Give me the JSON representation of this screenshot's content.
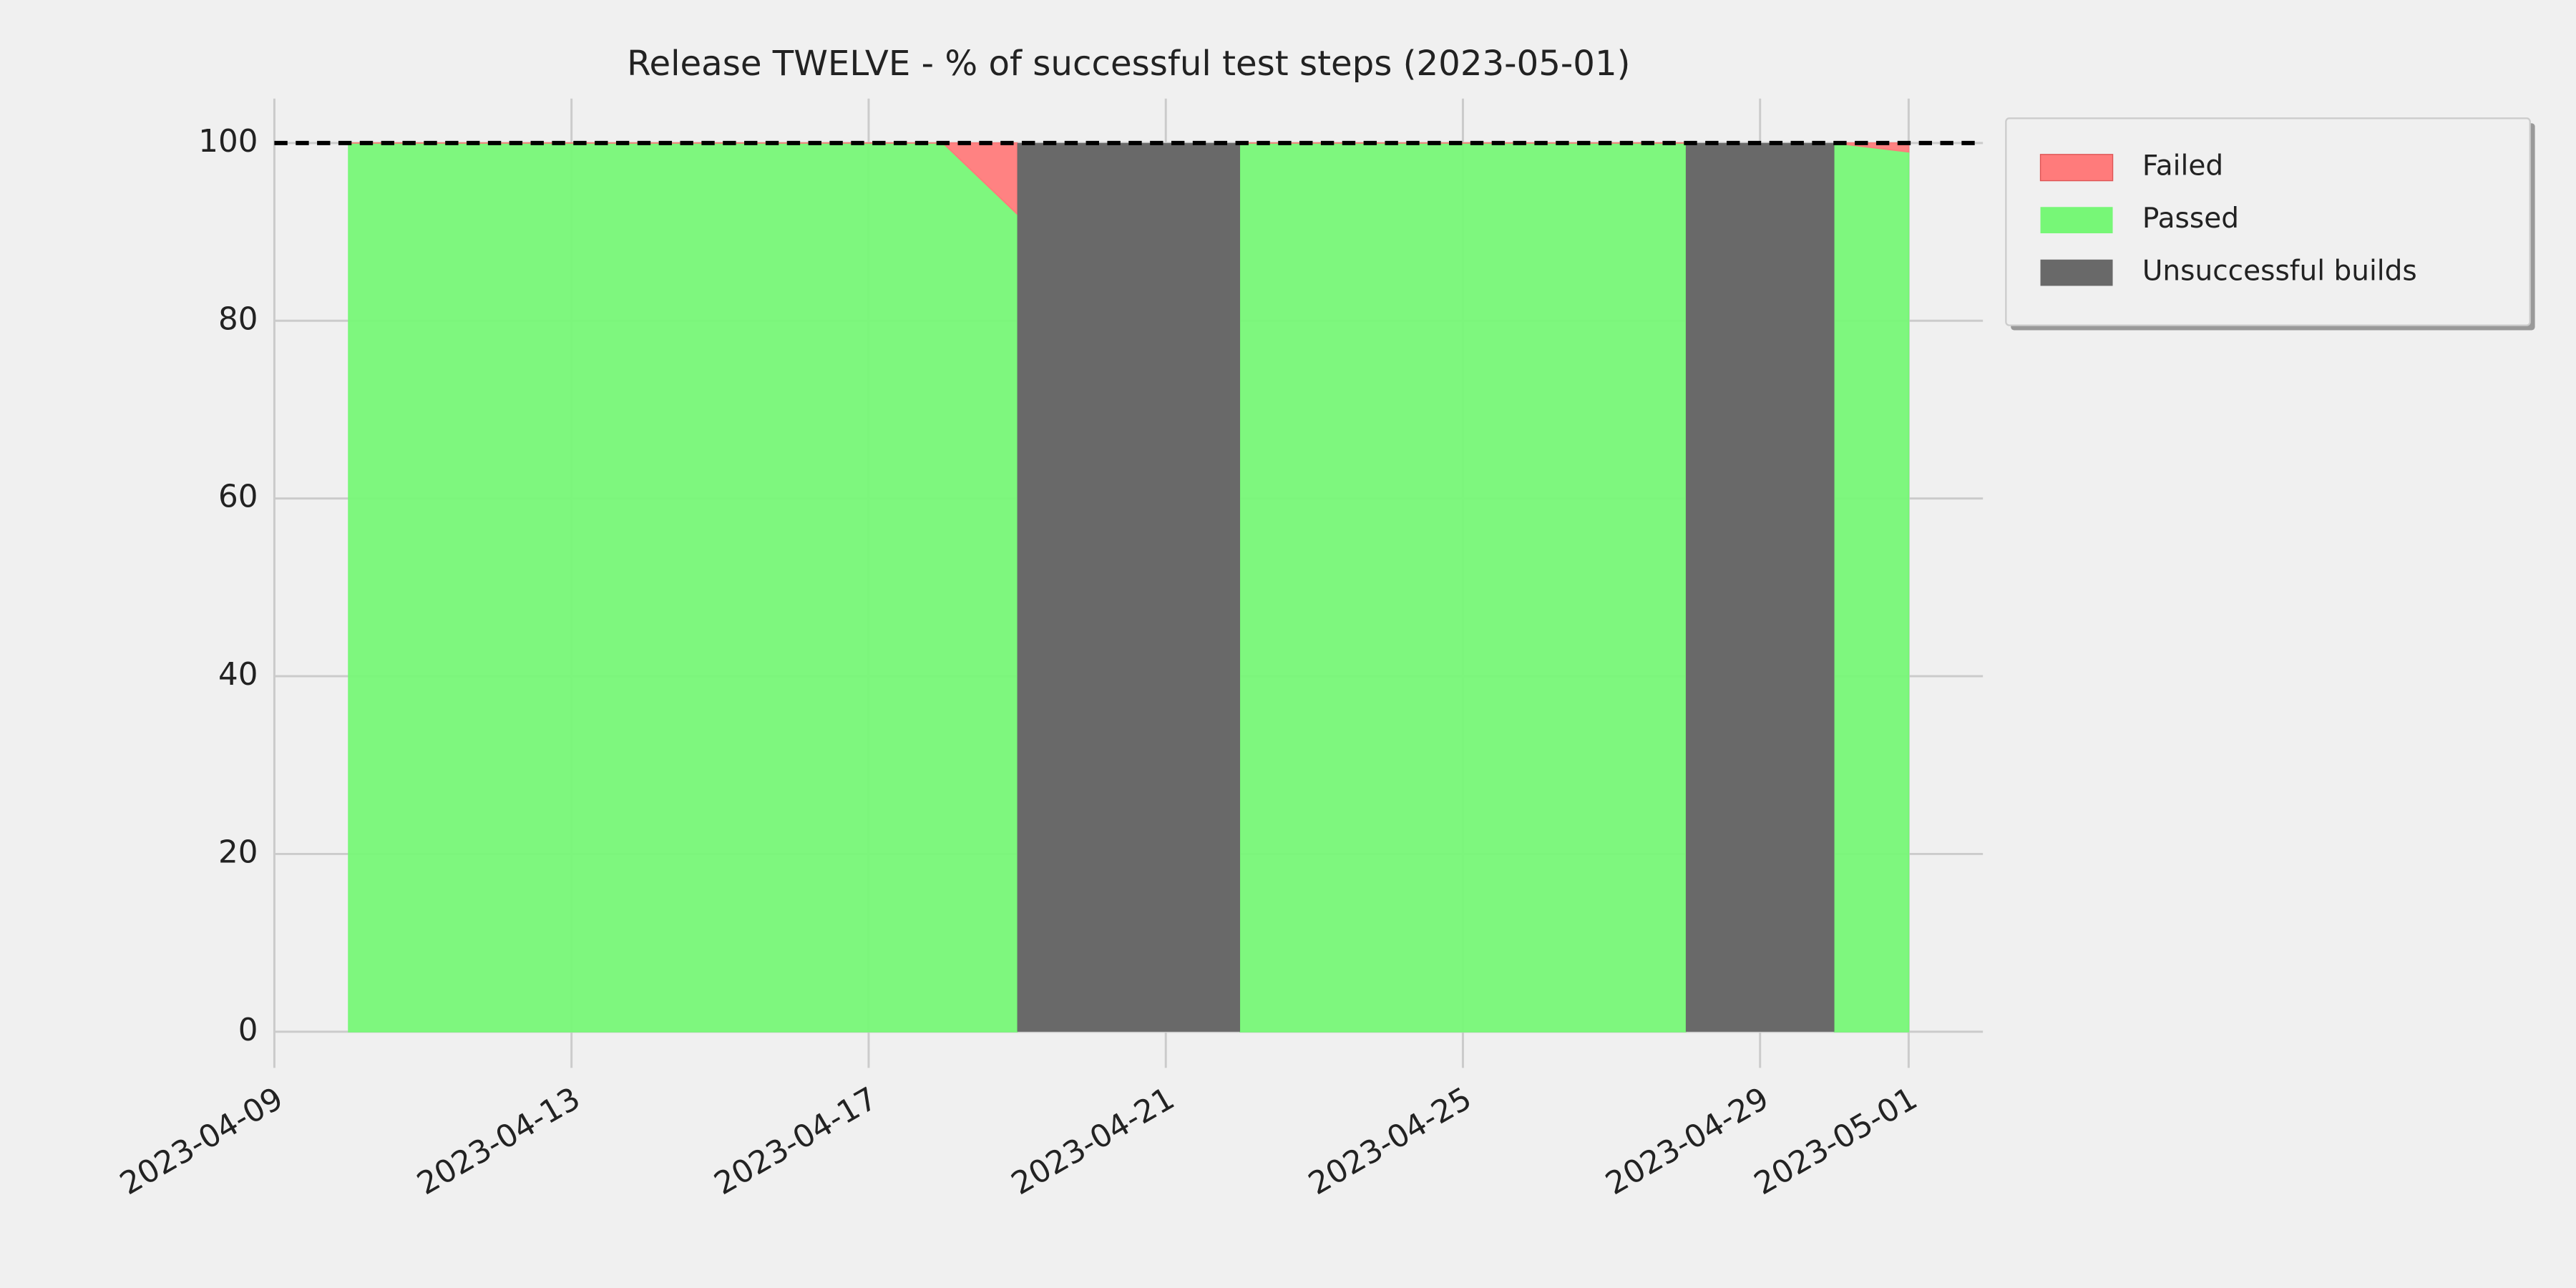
{
  "chart_data": {
    "type": "area",
    "title": "Release TWELVE - % of successful test steps (2023-05-01)",
    "x": [
      "2023-04-10",
      "2023-04-11",
      "2023-04-12",
      "2023-04-13",
      "2023-04-14",
      "2023-04-15",
      "2023-04-16",
      "2023-04-17",
      "2023-04-18",
      "2023-04-19",
      "2023-04-20",
      "2023-04-21",
      "2023-04-22",
      "2023-04-23",
      "2023-04-24",
      "2023-04-25",
      "2023-04-26",
      "2023-04-27",
      "2023-04-28",
      "2023-04-29",
      "2023-04-30",
      "2023-05-01"
    ],
    "series": [
      {
        "name": "Failed",
        "color": "#ff7b7b",
        "stacked": true,
        "values": [
          0,
          0,
          0,
          0,
          0,
          0,
          0,
          0,
          0,
          8,
          null,
          null,
          0,
          0,
          0,
          0,
          0,
          0,
          0,
          null,
          0,
          1
        ]
      },
      {
        "name": "Passed",
        "color": "#77f777",
        "stacked": true,
        "values": [
          100,
          100,
          100,
          100,
          100,
          100,
          100,
          100,
          100,
          92,
          null,
          null,
          100,
          100,
          100,
          100,
          100,
          100,
          100,
          null,
          100,
          99
        ]
      },
      {
        "name": "Unsuccessful builds",
        "color": "#696969",
        "stacked": false,
        "values": [
          null,
          null,
          null,
          null,
          null,
          null,
          null,
          null,
          null,
          100,
          100,
          100,
          100,
          null,
          null,
          null,
          null,
          null,
          100,
          100,
          100,
          null
        ]
      }
    ],
    "hline": 100,
    "xlim": [
      "2023-04-09",
      "2023-05-02"
    ],
    "xticks": [
      "2023-04-09",
      "2023-04-13",
      "2023-04-17",
      "2023-04-21",
      "2023-04-25",
      "2023-04-29",
      "2023-05-01"
    ],
    "ylim": [
      0,
      105
    ],
    "yticks": [
      0,
      20,
      40,
      60,
      80,
      100
    ],
    "grid": true,
    "legend": "outside upper right"
  }
}
